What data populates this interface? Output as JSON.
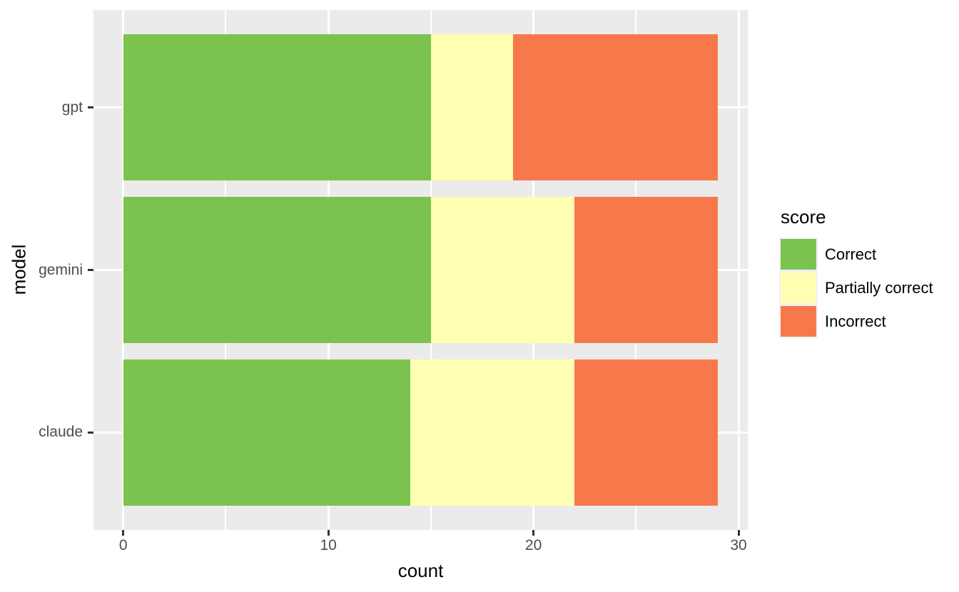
{
  "chart_data": {
    "type": "bar",
    "orientation": "horizontal",
    "stacked": true,
    "title": "",
    "xlabel": "count",
    "ylabel": "model",
    "categories": [
      "gpt",
      "gemini",
      "claude"
    ],
    "series": [
      {
        "name": "Correct",
        "color": "#7CC24E",
        "values": [
          15,
          15,
          14
        ]
      },
      {
        "name": "Partially correct",
        "color": "#FFFFB3",
        "values": [
          4,
          7,
          8
        ]
      },
      {
        "name": "Incorrect",
        "color": "#F7794B",
        "values": [
          10,
          7,
          7
        ]
      }
    ],
    "totals": [
      29,
      29,
      29
    ],
    "x_ticks": [
      0,
      10,
      20,
      30
    ],
    "x_minor_ticks": [
      5,
      15,
      25
    ],
    "xlim": [
      -1.45,
      30.45
    ],
    "bar_width_fraction": 0.9,
    "y_units_span": 3.2,
    "grid": true,
    "legend": {
      "title": "score",
      "position": "right",
      "entries": [
        "Correct",
        "Partially correct",
        "Incorrect"
      ]
    },
    "colors": {
      "panel_background": "#EBEBEB",
      "grid": "#FFFFFF",
      "tick_label": "#4D4D4D",
      "tick_mark": "#333333",
      "axis_title": "#000000",
      "legend_key_background": "#F2F2F2"
    }
  }
}
